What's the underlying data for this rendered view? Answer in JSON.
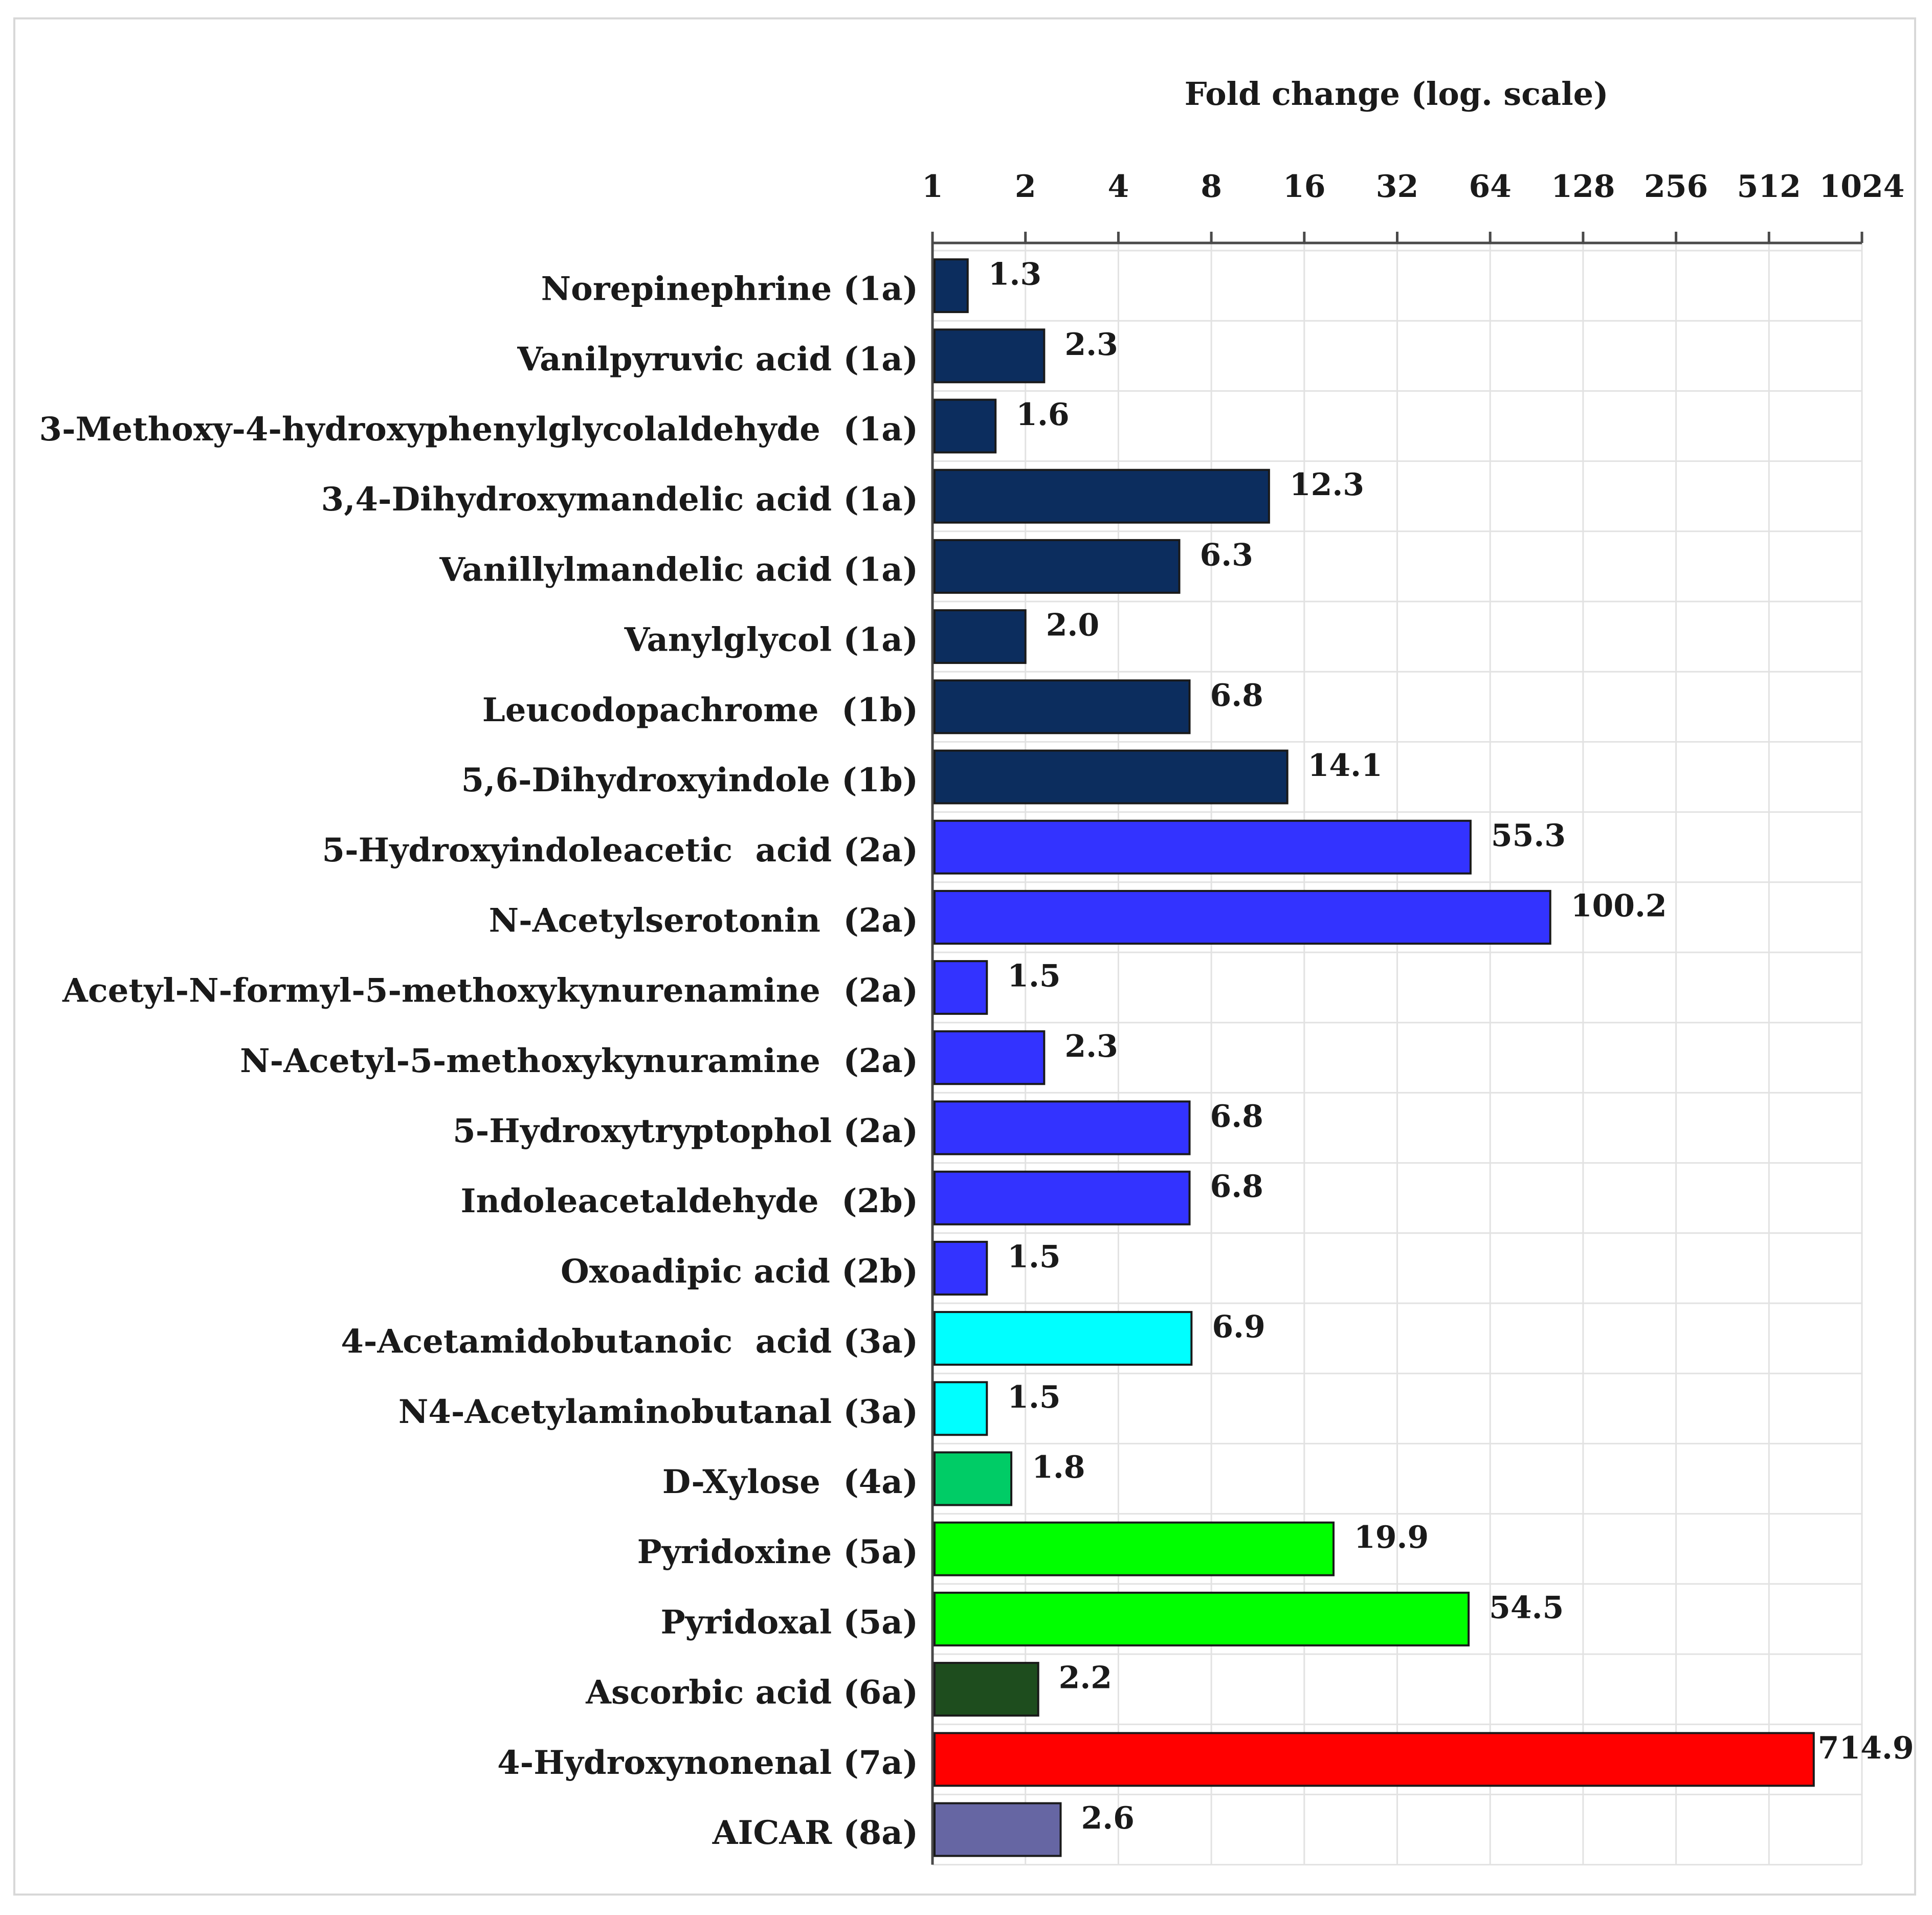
{
  "chart_data": {
    "type": "bar",
    "orientation": "horizontal",
    "title": "Fold change (log. scale)",
    "xlabel": "Fold change (log. scale)",
    "ylabel": "",
    "x_scale": "log2",
    "xlim": [
      1,
      1024
    ],
    "ticks": [
      "1",
      "2",
      "4",
      "8",
      "16",
      "32",
      "64",
      "128",
      "256",
      "512",
      "1024"
    ],
    "grid": true,
    "legend": "none",
    "categories": [
      "Norepinephrine (1a)",
      "Vanilpyruvic acid (1a)",
      "3-Methoxy-4-hydroxyphenylglycolaldehyde  (1a)",
      "3,4-Dihydroxymandelic acid (1a)",
      "Vanillylmandelic acid (1a)",
      "Vanylglycol (1a)",
      "Leucodopachrome  (1b)",
      "5,6-Dihydroxyindole (1b)",
      "5-Hydroxyindoleacetic  acid (2a)",
      "N-Acetylserotonin  (2a)",
      "Acetyl-N-formyl-5-methoxykynurenamine  (2a)",
      "N-Acetyl-5-methoxykynuramine  (2a)",
      "5-Hydroxytryptophol (2a)",
      "Indoleacetaldehyde  (2b)",
      "Oxoadipic acid (2b)",
      "4-Acetamidobutanoic  acid (3a)",
      "N4-Acetylaminobutanal (3a)",
      "D-Xylose  (4a)",
      "Pyridoxine (5a)",
      "Pyridoxal (5a)",
      "Ascorbic acid (6a)",
      "4-Hydroxynonenal (7a)",
      "AICAR (8a)"
    ],
    "values": [
      1.3,
      2.3,
      1.6,
      12.3,
      6.3,
      2.0,
      6.8,
      14.1,
      55.3,
      100.2,
      1.5,
      2.3,
      6.8,
      6.8,
      1.5,
      6.9,
      1.5,
      1.8,
      19.9,
      54.5,
      2.2,
      714.9,
      2.6
    ],
    "labels": [
      "1.3",
      "2.3",
      "1.6",
      "12.3",
      "6.3",
      "2.0",
      "6.8",
      "14.1",
      "55.3",
      "100.2",
      "1.5",
      "2.3",
      "6.8",
      "6.8",
      "1.5",
      "6.9",
      "1.5",
      "1.8",
      "19.9",
      "54.5",
      "2.2",
      "714.9",
      "2.6"
    ],
    "groups": [
      "1a",
      "1a",
      "1a",
      "1a",
      "1a",
      "1a",
      "1b",
      "1b",
      "2a",
      "2a",
      "2a",
      "2a",
      "2a",
      "2b",
      "2b",
      "3a",
      "3a",
      "4a",
      "5a",
      "5a",
      "6a",
      "7a",
      "8a"
    ],
    "group_colors": {
      "1": "#0c2d5e",
      "2": "#3333ff",
      "3": "#00ffff",
      "4": "#00cc66",
      "5": "#00ff00",
      "6": "#1e4d1e",
      "7": "#ff0000",
      "8": "#6666a3"
    }
  }
}
